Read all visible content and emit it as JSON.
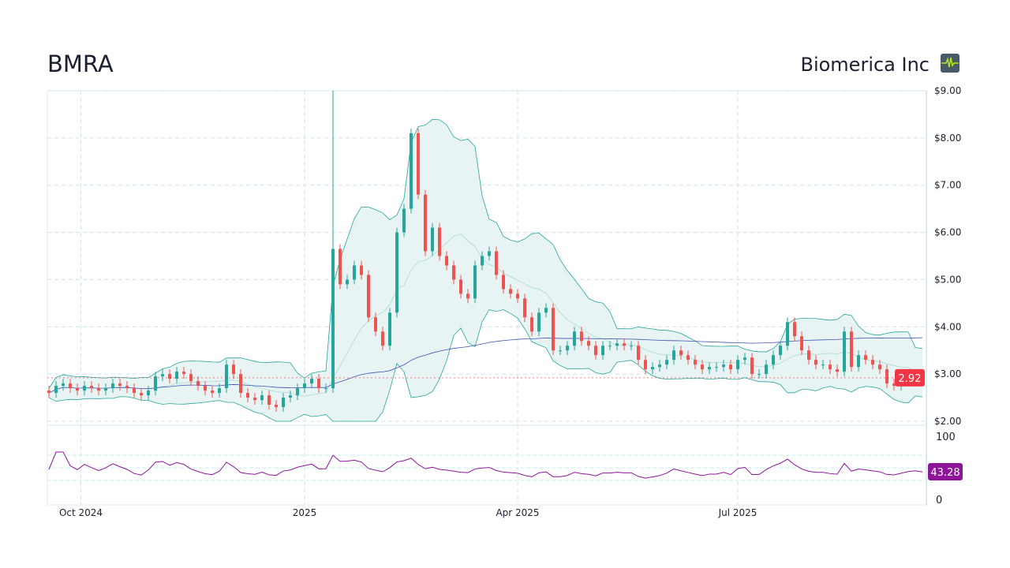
{
  "header": {
    "ticker": "BMRA",
    "company": "Biomerica Inc",
    "logo_icon": "heartbeat-icon"
  },
  "chart_data": [
    {
      "type": "candlestick",
      "ylim": [
        2,
        9
      ],
      "y_ticks": [
        "$2.00",
        "$3.00",
        "$4.00",
        "$5.00",
        "$6.00",
        "$7.00",
        "$8.00",
        "$9.00"
      ],
      "x_ticks": [
        {
          "label": "Oct 2024",
          "bar": 4.5
        },
        {
          "label": "2025",
          "bar": 36
        },
        {
          "label": "Apr 2025",
          "bar": 66
        },
        {
          "label": "Jul 2025",
          "bar": 97
        }
      ],
      "closes": [
        2.6,
        2.75,
        2.8,
        2.7,
        2.65,
        2.75,
        2.7,
        2.65,
        2.7,
        2.8,
        2.75,
        2.7,
        2.6,
        2.55,
        2.65,
        2.95,
        3.0,
        2.9,
        3.05,
        3.0,
        2.85,
        2.75,
        2.65,
        2.6,
        2.7,
        3.2,
        3.0,
        2.6,
        2.5,
        2.45,
        2.55,
        2.35,
        2.3,
        2.5,
        2.55,
        2.7,
        2.8,
        2.9,
        2.7,
        2.7,
        5.65,
        4.9,
        5.0,
        5.3,
        5.1,
        4.2,
        3.9,
        3.6,
        4.3,
        6.0,
        6.5,
        8.1,
        6.8,
        5.6,
        6.1,
        5.5,
        5.3,
        5.0,
        4.7,
        4.6,
        5.3,
        5.5,
        5.6,
        5.1,
        4.8,
        4.7,
        4.6,
        4.2,
        3.9,
        4.3,
        4.4,
        3.5,
        3.5,
        3.6,
        3.9,
        3.7,
        3.6,
        3.4,
        3.6,
        3.6,
        3.65,
        3.6,
        3.6,
        3.3,
        3.1,
        3.15,
        3.2,
        3.3,
        3.5,
        3.4,
        3.3,
        3.2,
        3.1,
        3.15,
        3.15,
        3.2,
        3.1,
        3.3,
        3.35,
        3.0,
        3.0,
        3.2,
        3.4,
        3.6,
        4.1,
        3.8,
        3.5,
        3.3,
        3.2,
        3.2,
        3.1,
        3.05,
        3.9,
        3.15,
        3.4,
        3.3,
        3.2,
        3.1,
        2.8,
        2.75,
        2.85,
        2.95,
        3.0,
        2.92
      ],
      "spike_high": 9.0,
      "last_price": "2.92",
      "colors": {
        "up": "#26a69a",
        "down": "#ef5350",
        "band": "#26a69a",
        "band_fill": "#e8f4f3",
        "sma_long": "#3f51b5",
        "sma_mid": "#9c6ade",
        "last": "#f23645"
      }
    },
    {
      "type": "line",
      "name": "RSI",
      "ylim": [
        0,
        100
      ],
      "y_ticks": [
        "0",
        "100"
      ],
      "last_value": "43.28",
      "color": "#8e1599"
    }
  ]
}
